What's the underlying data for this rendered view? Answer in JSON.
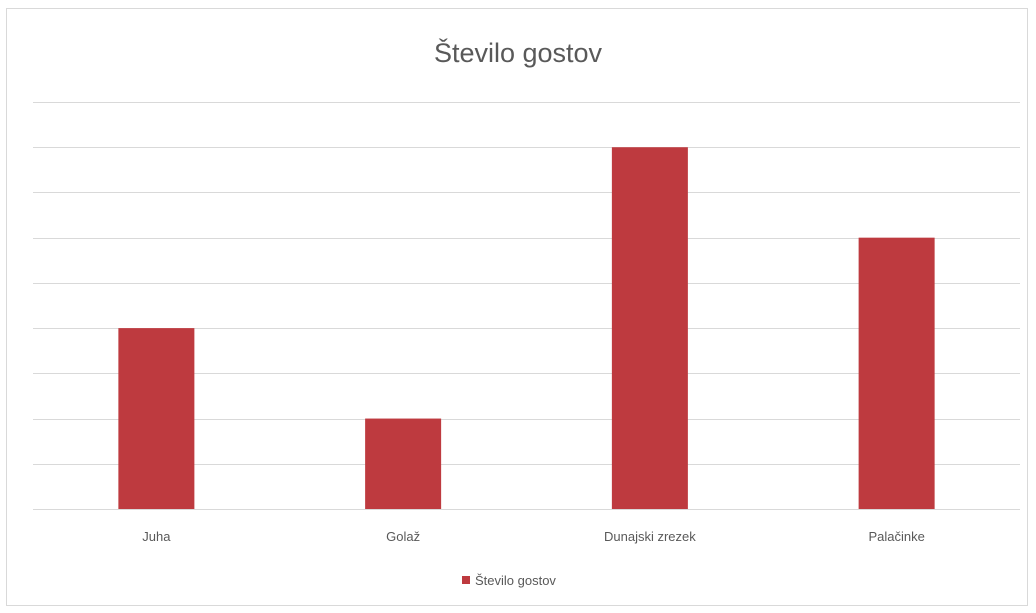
{
  "chart_data": {
    "type": "bar",
    "title": "Število gostov",
    "xlabel": "",
    "ylabel": "",
    "categories": [
      "Juha",
      "Golaž",
      "Dunajski zrezek",
      "Palačinke"
    ],
    "series": [
      {
        "name": "Število gostov",
        "values": [
          4,
          2,
          8,
          6
        ],
        "color": "#be3a3f"
      }
    ],
    "ylim": [
      0,
      9
    ],
    "y_tick_step": 1,
    "y_tick_labels_shown": false,
    "grid": true,
    "grid_color": "#d9d9d9",
    "legend": "bottom"
  }
}
